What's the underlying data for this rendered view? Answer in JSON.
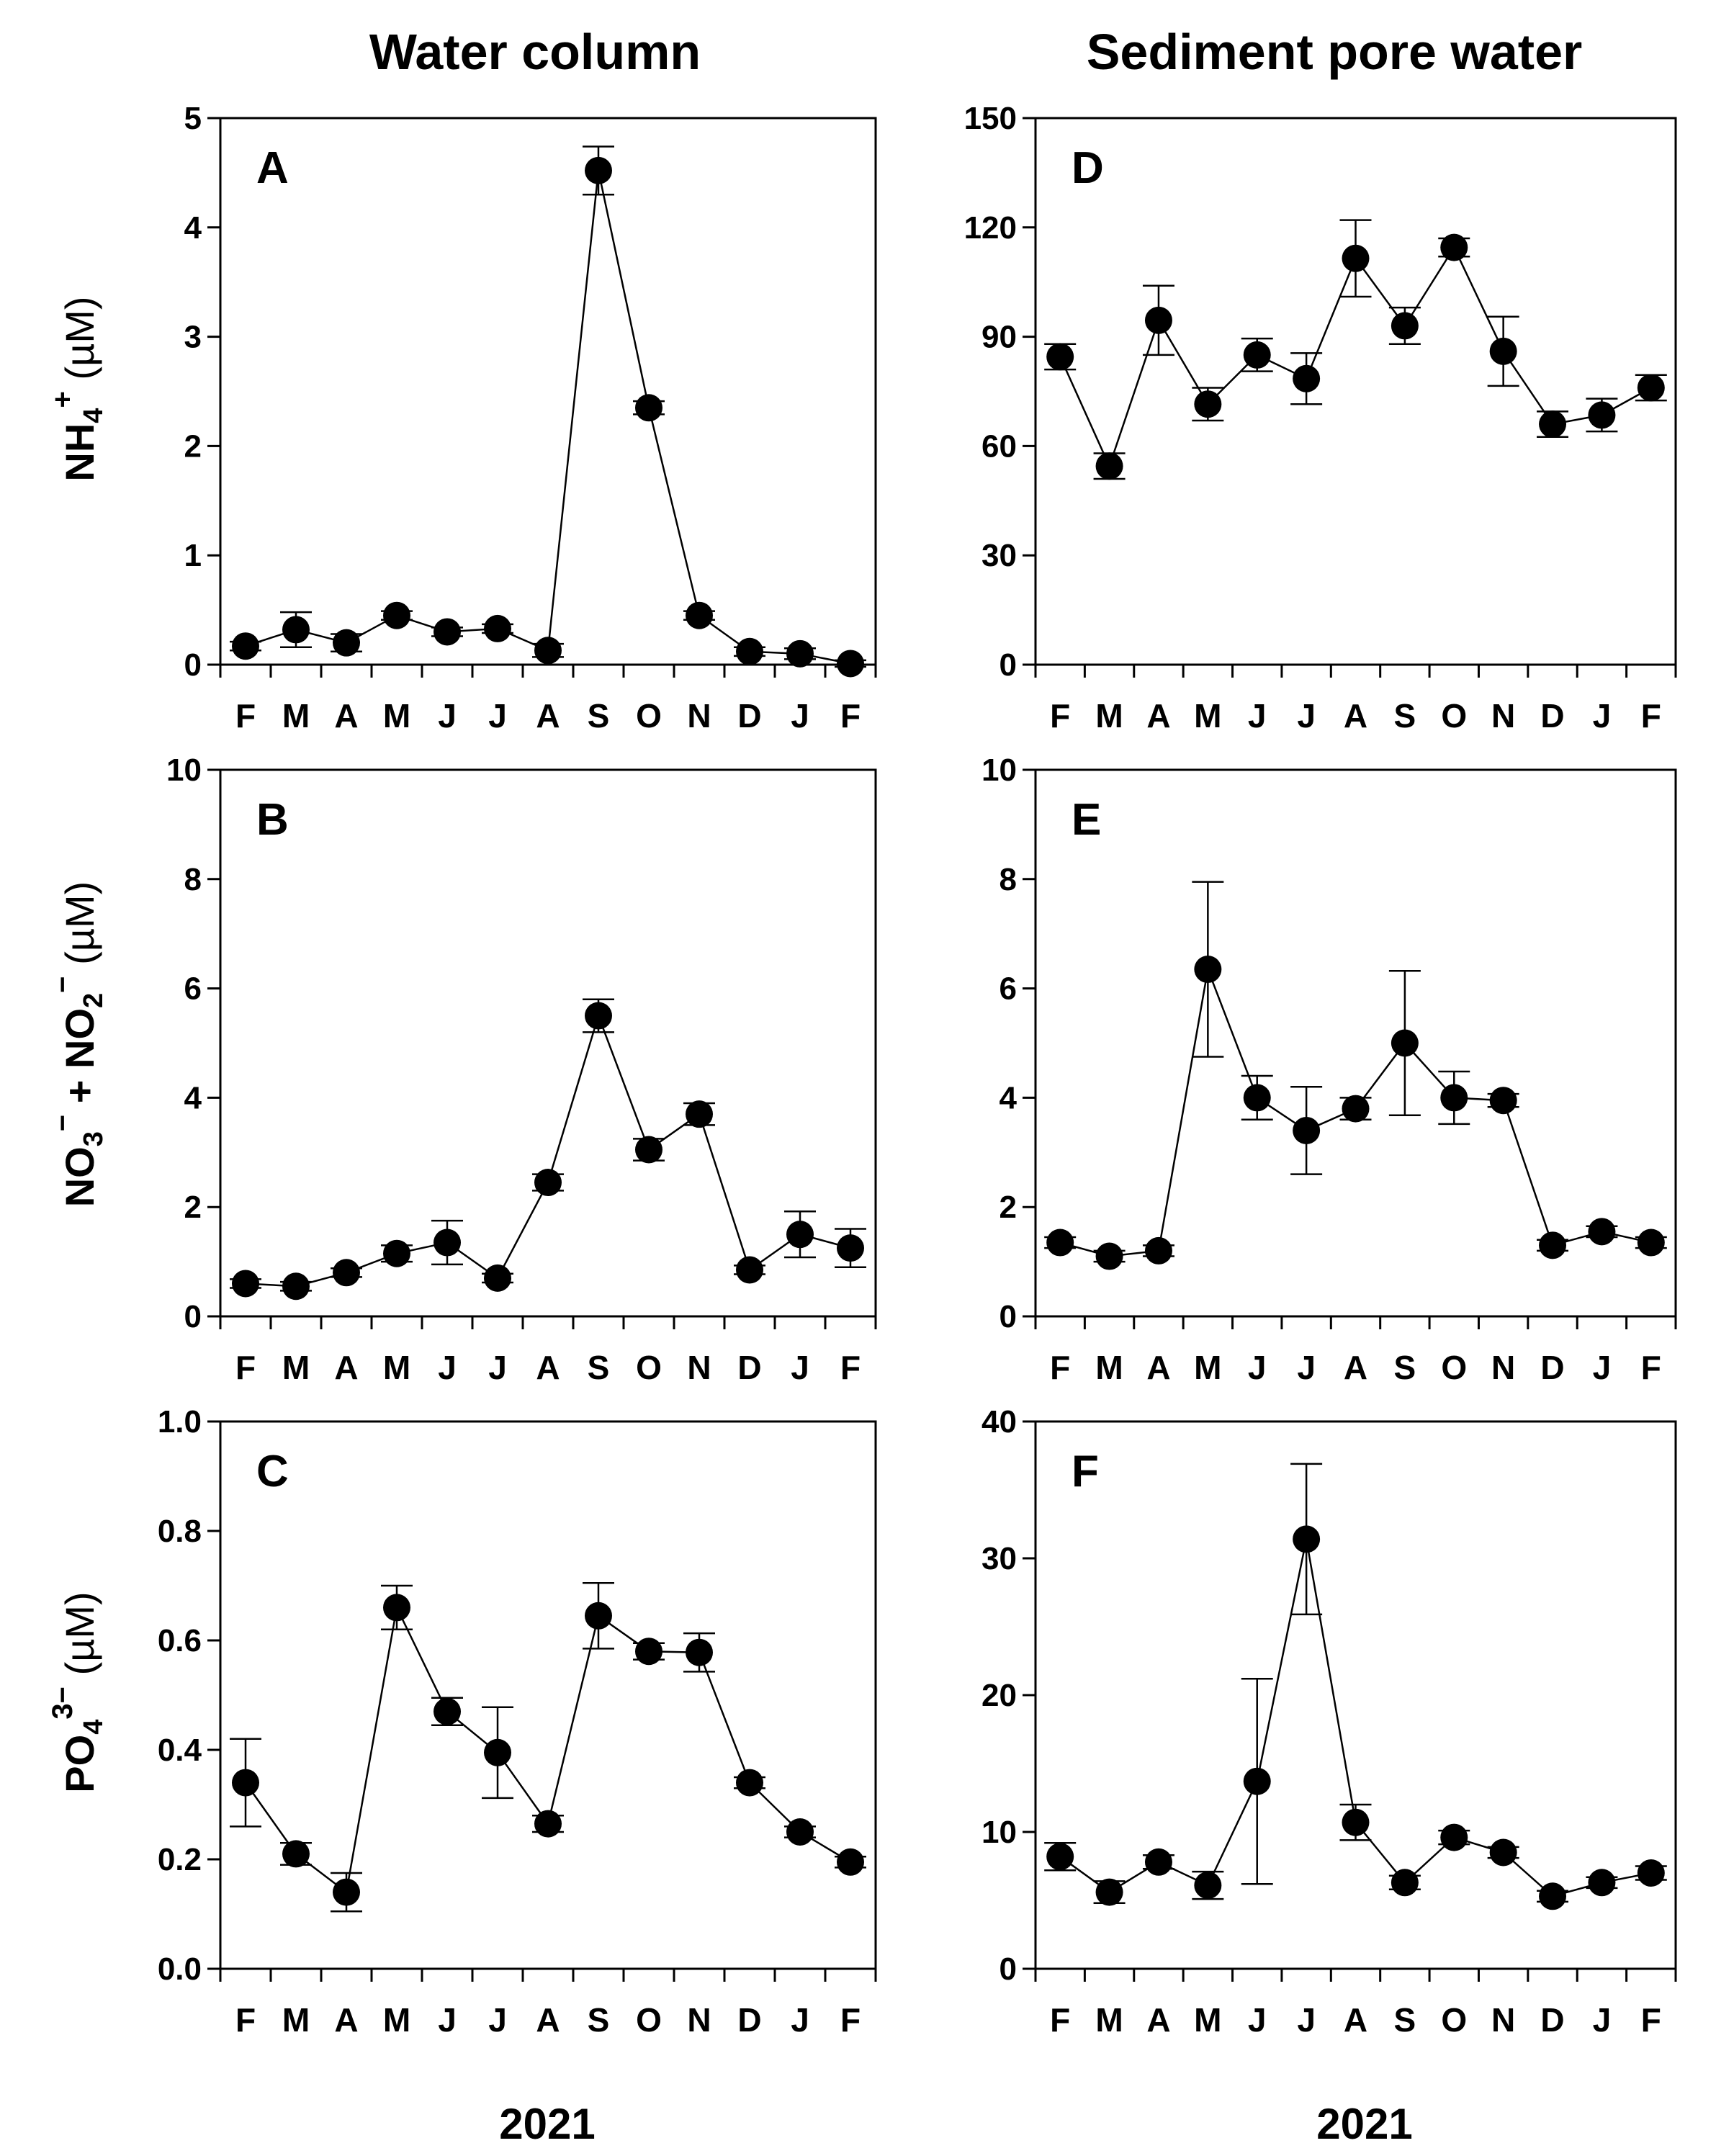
{
  "titles": {
    "left": "Water column",
    "right": "Sediment pore water"
  },
  "year_label": "2021",
  "y_labels": {
    "row1": {
      "p1": "NH",
      "s1": "4",
      "sup1": "+",
      "unit": "(µM)"
    },
    "row2": {
      "p1": "NO",
      "s1": "3",
      "sup1": "−",
      "mid": " + NO",
      "s2": "2",
      "sup2": "−",
      "unit": "(µM)"
    },
    "row3": {
      "p1": "PO",
      "s1": "4",
      "sup1": "3−",
      "unit": "(µM)"
    }
  },
  "chart_data": [
    {
      "panel": "A",
      "type": "line",
      "letter": "A",
      "categories": [
        "F",
        "M",
        "A",
        "M",
        "J",
        "J",
        "A",
        "S",
        "O",
        "N",
        "D",
        "J",
        "F"
      ],
      "values": [
        0.17,
        0.32,
        0.2,
        0.45,
        0.3,
        0.33,
        0.13,
        4.52,
        2.35,
        0.45,
        0.12,
        0.1,
        0.01
      ],
      "errors": [
        0.04,
        0.16,
        0.08,
        0.04,
        0.04,
        0.04,
        0.06,
        0.22,
        0.06,
        0.04,
        0.04,
        0.05,
        0.03
      ],
      "ylim": [
        0,
        5
      ],
      "yticks": [
        "0",
        "1",
        "2",
        "3",
        "4",
        "5"
      ]
    },
    {
      "panel": "D",
      "type": "line",
      "letter": "D",
      "categories": [
        "F",
        "M",
        "A",
        "M",
        "J",
        "J",
        "A",
        "S",
        "O",
        "N",
        "D",
        "J",
        "F"
      ],
      "values": [
        84.5,
        54.5,
        94.5,
        71.5,
        85,
        78.5,
        111.5,
        93,
        114.5,
        86,
        66,
        68.5,
        76
      ],
      "errors": [
        3.5,
        3.5,
        9.5,
        4.5,
        4.5,
        7,
        10.5,
        5,
        2.5,
        9.5,
        3.5,
        4.5,
        3.5
      ],
      "ylim": [
        0,
        150
      ],
      "yticks": [
        "0",
        "30",
        "60",
        "90",
        "120",
        "150"
      ]
    },
    {
      "panel": "B",
      "type": "line",
      "letter": "B",
      "categories": [
        "F",
        "M",
        "A",
        "M",
        "J",
        "J",
        "A",
        "S",
        "O",
        "N",
        "D",
        "J",
        "F"
      ],
      "values": [
        0.6,
        0.55,
        0.8,
        1.15,
        1.35,
        0.7,
        2.45,
        5.5,
        3.05,
        3.7,
        0.85,
        1.5,
        1.25
      ],
      "errors": [
        0.08,
        0.08,
        0.08,
        0.15,
        0.4,
        0.08,
        0.15,
        0.3,
        0.2,
        0.2,
        0.08,
        0.42,
        0.35
      ],
      "ylim": [
        0,
        10
      ],
      "yticks": [
        "0",
        "2",
        "4",
        "6",
        "8",
        "10"
      ]
    },
    {
      "panel": "E",
      "type": "line",
      "letter": "E",
      "categories": [
        "F",
        "M",
        "A",
        "M",
        "J",
        "J",
        "A",
        "S",
        "O",
        "N",
        "D",
        "J",
        "F"
      ],
      "values": [
        1.35,
        1.1,
        1.2,
        6.35,
        4.0,
        3.4,
        3.8,
        5.0,
        4.0,
        3.95,
        1.3,
        1.55,
        1.35
      ],
      "errors": [
        0.1,
        0.1,
        0.1,
        1.6,
        0.4,
        0.8,
        0.2,
        1.32,
        0.48,
        0.12,
        0.1,
        0.1,
        0.1
      ],
      "ylim": [
        0,
        10
      ],
      "yticks": [
        "0",
        "2",
        "4",
        "6",
        "8",
        "10"
      ]
    },
    {
      "panel": "C",
      "type": "line",
      "letter": "C",
      "categories": [
        "F",
        "M",
        "A",
        "M",
        "J",
        "J",
        "A",
        "S",
        "O",
        "N",
        "D",
        "J",
        "F"
      ],
      "values": [
        0.34,
        0.21,
        0.14,
        0.66,
        0.47,
        0.395,
        0.265,
        0.645,
        0.58,
        0.578,
        0.34,
        0.25,
        0.195
      ],
      "errors": [
        0.08,
        0.02,
        0.035,
        0.04,
        0.025,
        0.083,
        0.015,
        0.06,
        0.015,
        0.035,
        0.01,
        0.01,
        0.01
      ],
      "ylim": [
        0,
        1
      ],
      "yticks": [
        "0.0",
        "0.2",
        "0.4",
        "0.6",
        "0.8",
        "1.0"
      ]
    },
    {
      "panel": "F",
      "type": "line",
      "letter": "F",
      "categories": [
        "F",
        "M",
        "A",
        "M",
        "J",
        "J",
        "A",
        "S",
        "O",
        "N",
        "D",
        "J",
        "F"
      ],
      "values": [
        8.2,
        5.6,
        7.8,
        6.1,
        13.7,
        31.4,
        10.7,
        6.3,
        9.6,
        8.5,
        5.3,
        6.3,
        7.0
      ],
      "errors": [
        1.0,
        0.8,
        0.5,
        1.0,
        7.5,
        5.5,
        1.3,
        0.5,
        0.5,
        0.4,
        0.4,
        0.4,
        0.5
      ],
      "ylim": [
        0,
        40
      ],
      "yticks": [
        "0",
        "10",
        "20",
        "30",
        "40"
      ]
    }
  ]
}
